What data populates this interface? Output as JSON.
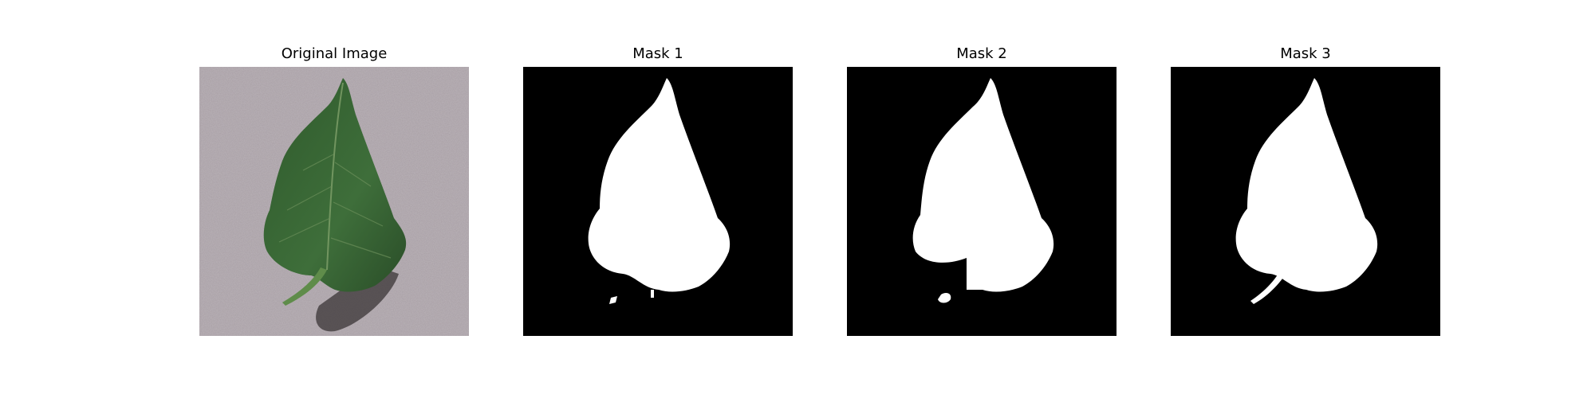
{
  "figure": {
    "panels": [
      {
        "title": "Original Image",
        "kind": "photo"
      },
      {
        "title": "Mask 1",
        "kind": "mask"
      },
      {
        "title": "Mask 2",
        "kind": "mask"
      },
      {
        "title": "Mask 3",
        "kind": "mask"
      }
    ]
  },
  "colors": {
    "background_surface": "#a39aa0",
    "leaf": "#3b6a38",
    "leaf_vein": "#7fa06a",
    "mask_fg": "#ffffff",
    "mask_bg": "#000000"
  }
}
